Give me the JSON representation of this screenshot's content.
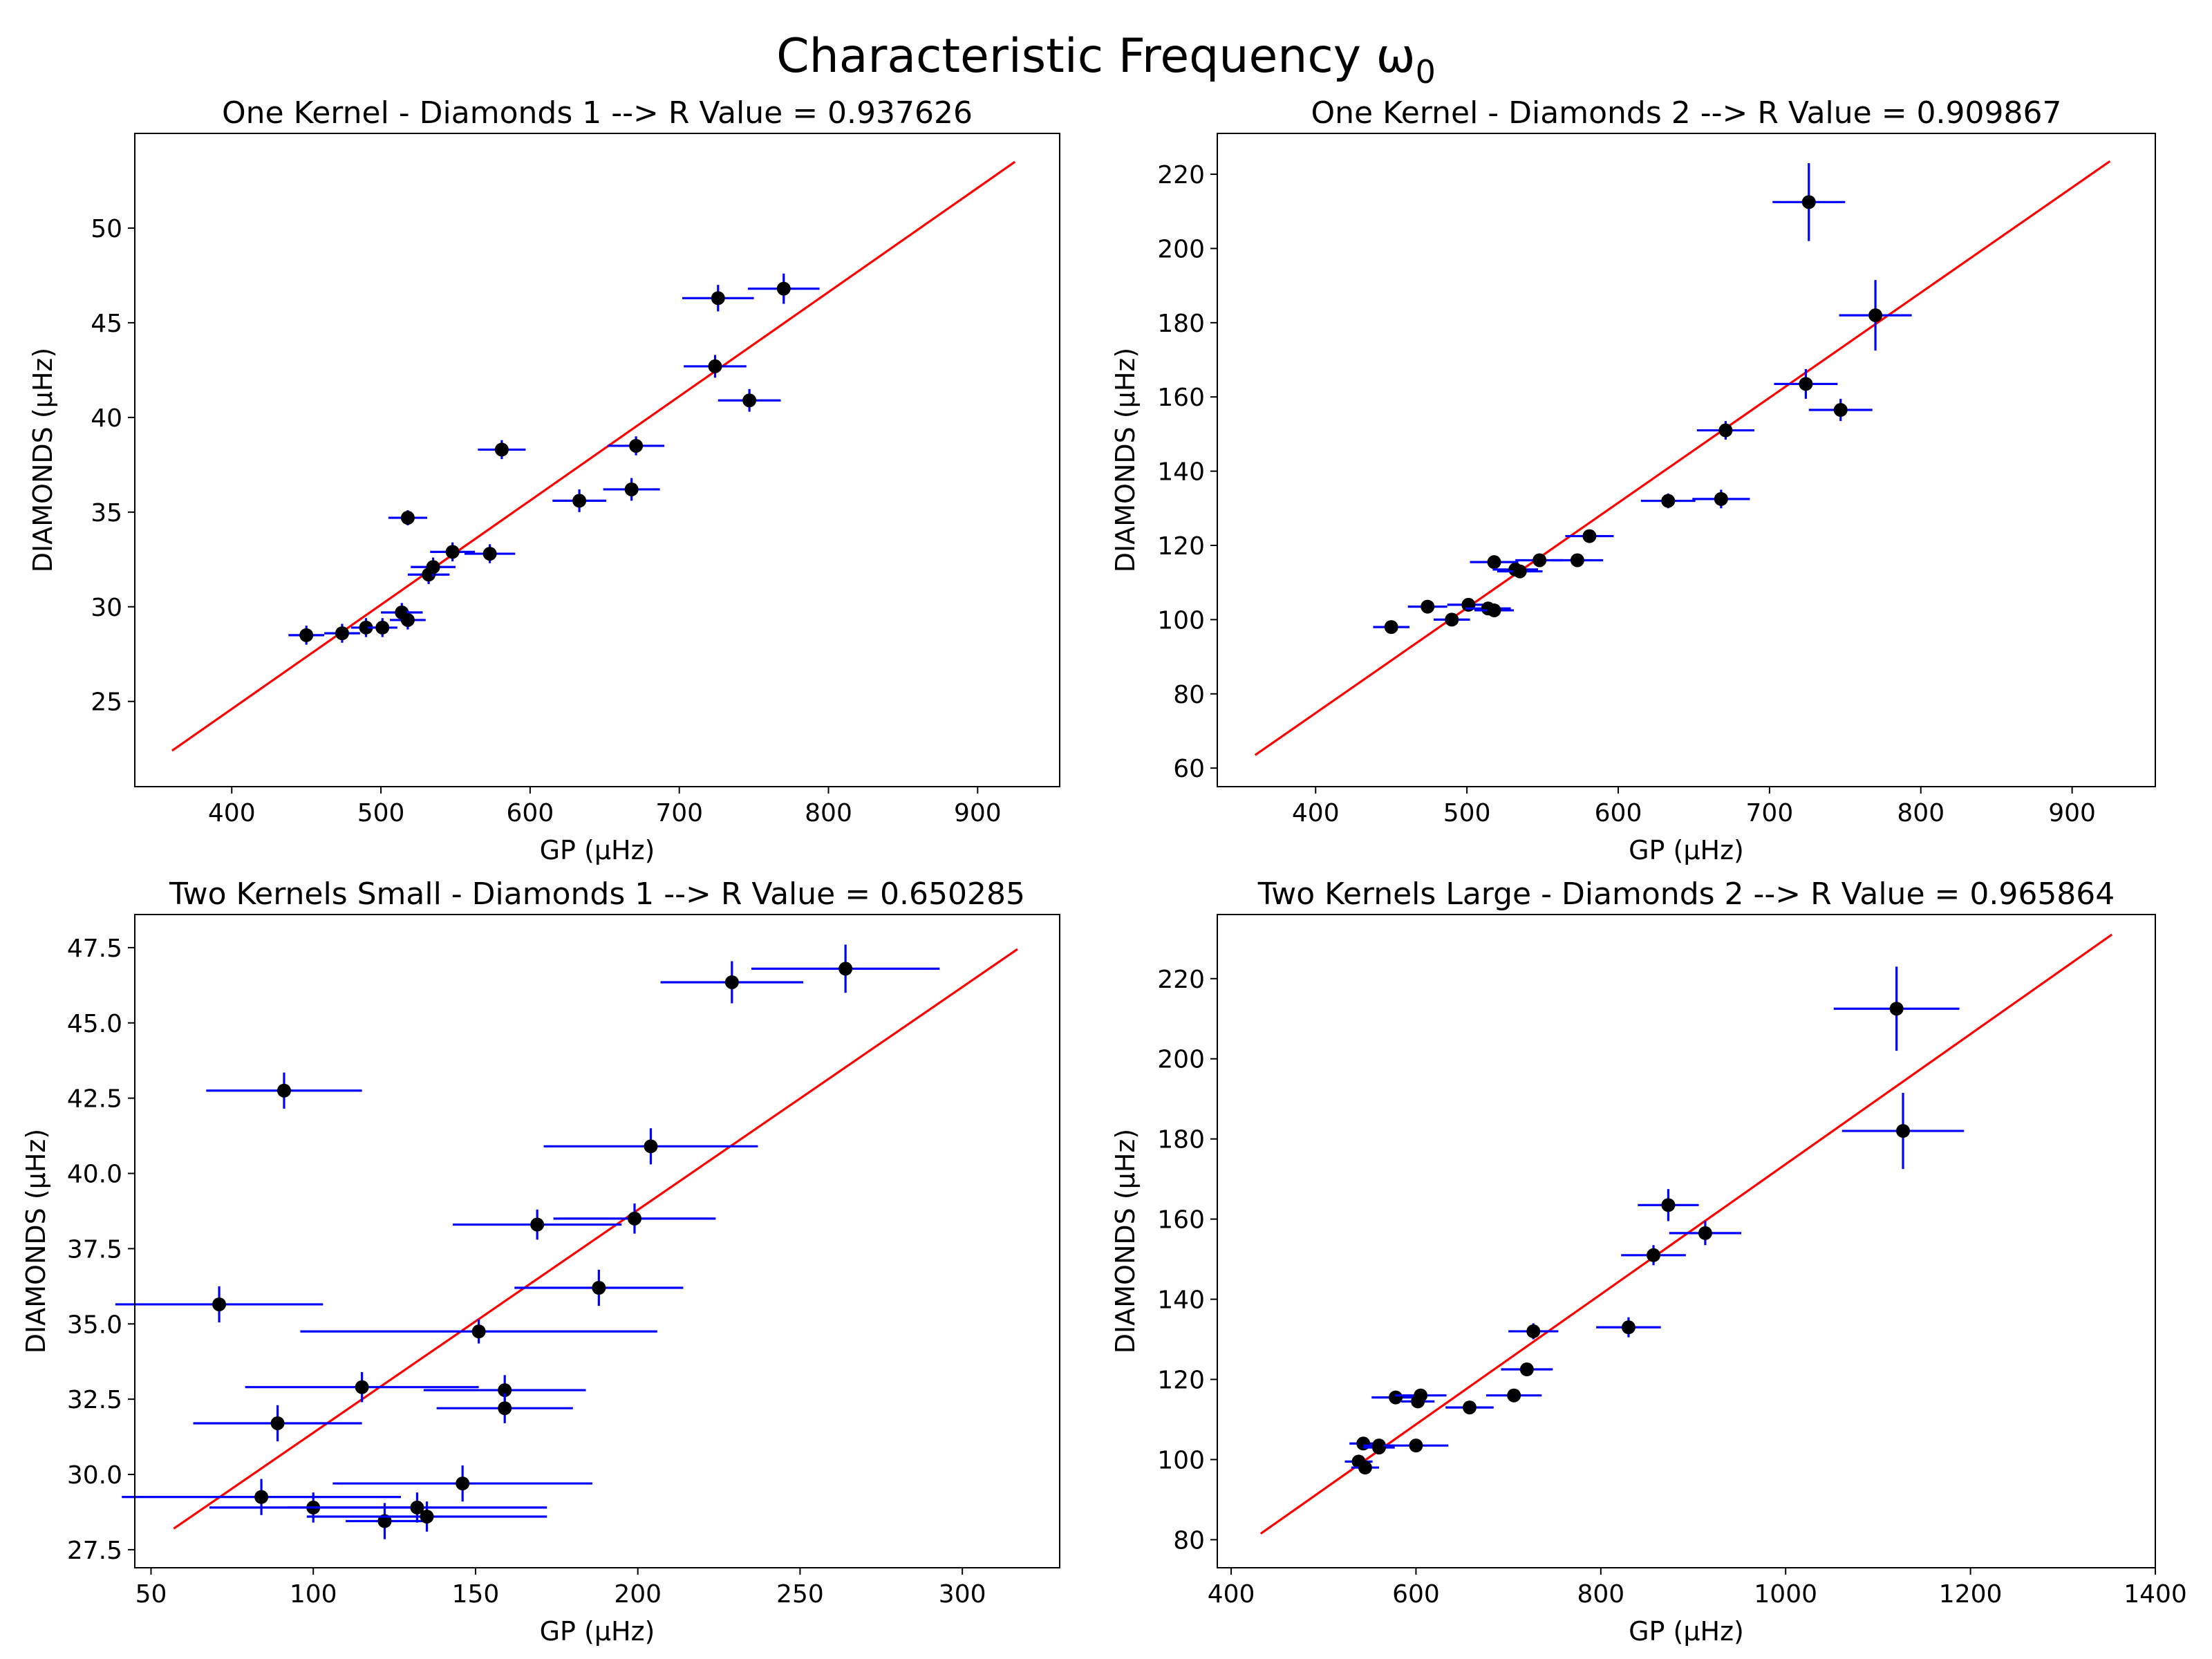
{
  "figure_title": "Characteristic Frequency ω",
  "figure_title_sub": "0",
  "colors": {
    "errorbar": "#0000ff",
    "point": "#000000",
    "fit_line": "#ff0000",
    "axes": "#000000"
  },
  "chart_data": [
    {
      "type": "scatter",
      "title": "One Kernel - Diamonds 1 --> R Value = 0.937626",
      "xlabel": "GP (μHz)",
      "ylabel": "DIAMONDS (μHz)",
      "xlim": [
        335,
        955
      ],
      "ylim": [
        20.5,
        55
      ],
      "xticks": [
        400,
        500,
        600,
        700,
        800,
        900
      ],
      "yticks": [
        25,
        30,
        35,
        40,
        45,
        50
      ],
      "points": [
        {
          "x": 450,
          "y": 28.5,
          "xerr": 12,
          "yerr": 0.5
        },
        {
          "x": 474,
          "y": 28.6,
          "xerr": 12,
          "yerr": 0.5
        },
        {
          "x": 490,
          "y": 28.9,
          "xerr": 10,
          "yerr": 0.5
        },
        {
          "x": 501,
          "y": 28.9,
          "xerr": 10,
          "yerr": 0.5
        },
        {
          "x": 514,
          "y": 29.7,
          "xerr": 14,
          "yerr": 0.5
        },
        {
          "x": 518,
          "y": 29.3,
          "xerr": 12,
          "yerr": 0.5
        },
        {
          "x": 518,
          "y": 34.7,
          "xerr": 13,
          "yerr": 0.4
        },
        {
          "x": 532,
          "y": 31.7,
          "xerr": 14,
          "yerr": 0.5
        },
        {
          "x": 535,
          "y": 32.1,
          "xerr": 15,
          "yerr": 0.5
        },
        {
          "x": 548,
          "y": 32.9,
          "xerr": 15,
          "yerr": 0.5
        },
        {
          "x": 573,
          "y": 32.8,
          "xerr": 17,
          "yerr": 0.5
        },
        {
          "x": 581,
          "y": 38.3,
          "xerr": 16,
          "yerr": 0.5
        },
        {
          "x": 633,
          "y": 35.6,
          "xerr": 18,
          "yerr": 0.6
        },
        {
          "x": 668,
          "y": 36.2,
          "xerr": 19,
          "yerr": 0.6
        },
        {
          "x": 671,
          "y": 38.5,
          "xerr": 19,
          "yerr": 0.5
        },
        {
          "x": 724,
          "y": 42.7,
          "xerr": 21,
          "yerr": 0.6
        },
        {
          "x": 726,
          "y": 46.3,
          "xerr": 24,
          "yerr": 0.7
        },
        {
          "x": 747,
          "y": 40.9,
          "xerr": 21,
          "yerr": 0.6
        },
        {
          "x": 770,
          "y": 46.8,
          "xerr": 24,
          "yerr": 0.8
        }
      ],
      "fit_line": {
        "x": [
          360,
          925
        ],
        "y": [
          22.4,
          53.5
        ]
      }
    },
    {
      "type": "scatter",
      "title": "One Kernel - Diamonds 2 --> R Value = 0.909867",
      "xlabel": "GP (μHz)",
      "ylabel": "DIAMONDS (μHz)",
      "xlim": [
        335,
        955
      ],
      "ylim": [
        55,
        231
      ],
      "xticks": [
        400,
        500,
        600,
        700,
        800,
        900
      ],
      "yticks": [
        60,
        80,
        100,
        120,
        140,
        160,
        180,
        200,
        220
      ],
      "points": [
        {
          "x": 450,
          "y": 98,
          "xerr": 12,
          "yerr": 1.5
        },
        {
          "x": 474,
          "y": 103.5,
          "xerr": 13,
          "yerr": 1.5
        },
        {
          "x": 490,
          "y": 100,
          "xerr": 12,
          "yerr": 1.5
        },
        {
          "x": 501,
          "y": 104,
          "xerr": 14,
          "yerr": 1.5
        },
        {
          "x": 514,
          "y": 103,
          "xerr": 15,
          "yerr": 1.5
        },
        {
          "x": 518,
          "y": 102.5,
          "xerr": 13,
          "yerr": 1.5
        },
        {
          "x": 518,
          "y": 115.5,
          "xerr": 16,
          "yerr": 1.5
        },
        {
          "x": 532,
          "y": 113.5,
          "xerr": 15,
          "yerr": 1.5
        },
        {
          "x": 535,
          "y": 113,
          "xerr": 15,
          "yerr": 1.5
        },
        {
          "x": 548,
          "y": 116,
          "xerr": 16,
          "yerr": 1.5
        },
        {
          "x": 573,
          "y": 116,
          "xerr": 17,
          "yerr": 1.5
        },
        {
          "x": 581,
          "y": 122.5,
          "xerr": 16,
          "yerr": 1.5
        },
        {
          "x": 633,
          "y": 132,
          "xerr": 18,
          "yerr": 2
        },
        {
          "x": 668,
          "y": 132.5,
          "xerr": 19,
          "yerr": 2.5
        },
        {
          "x": 671,
          "y": 151,
          "xerr": 19,
          "yerr": 2.5
        },
        {
          "x": 724,
          "y": 163.5,
          "xerr": 21,
          "yerr": 4
        },
        {
          "x": 726,
          "y": 212.5,
          "xerr": 24,
          "yerr": 10.5
        },
        {
          "x": 747,
          "y": 156.5,
          "xerr": 21,
          "yerr": 3
        },
        {
          "x": 770,
          "y": 182,
          "xerr": 24,
          "yerr": 9.5
        }
      ],
      "fit_line": {
        "x": [
          360,
          925
        ],
        "y": [
          63.5,
          223.5
        ]
      }
    },
    {
      "type": "scatter",
      "title": "Two Kernels Small - Diamonds 1 --> R Value = 0.650285",
      "xlabel": "GP (μHz)",
      "ylabel": "DIAMONDS (μHz)",
      "xlim": [
        45,
        330
      ],
      "ylim": [
        26.9,
        48.6
      ],
      "xticks": [
        50,
        100,
        150,
        200,
        250,
        300
      ],
      "yticks": [
        27.5,
        30.0,
        32.5,
        35.0,
        37.5,
        40.0,
        42.5,
        45.0,
        47.5
      ],
      "ytick_labels": [
        "27.5",
        "30.0",
        "32.5",
        "35.0",
        "37.5",
        "40.0",
        "42.5",
        "45.0",
        "47.5"
      ],
      "points": [
        {
          "x": 71,
          "y": 35.65,
          "xerr": 32,
          "yerr": 0.6
        },
        {
          "x": 84,
          "y": 29.25,
          "xerr": 43,
          "yerr": 0.6
        },
        {
          "x": 89,
          "y": 31.7,
          "xerr": 26,
          "yerr": 0.6
        },
        {
          "x": 91,
          "y": 42.75,
          "xerr": 24,
          "yerr": 0.6
        },
        {
          "x": 100,
          "y": 28.9,
          "xerr": 32,
          "yerr": 0.5
        },
        {
          "x": 115,
          "y": 32.9,
          "xerr": 36,
          "yerr": 0.5
        },
        {
          "x": 122,
          "y": 28.45,
          "xerr": 12,
          "yerr": 0.6
        },
        {
          "x": 132,
          "y": 28.9,
          "xerr": 40,
          "yerr": 0.5
        },
        {
          "x": 135,
          "y": 28.6,
          "xerr": 37,
          "yerr": 0.5
        },
        {
          "x": 146,
          "y": 29.7,
          "xerr": 40,
          "yerr": 0.6
        },
        {
          "x": 151,
          "y": 34.75,
          "xerr": 55,
          "yerr": 0.4
        },
        {
          "x": 159,
          "y": 32.8,
          "xerr": 25,
          "yerr": 0.5
        },
        {
          "x": 159,
          "y": 32.2,
          "xerr": 21,
          "yerr": 0.5
        },
        {
          "x": 169,
          "y": 38.3,
          "xerr": 26,
          "yerr": 0.5
        },
        {
          "x": 188,
          "y": 36.2,
          "xerr": 26,
          "yerr": 0.6
        },
        {
          "x": 199,
          "y": 38.5,
          "xerr": 25,
          "yerr": 0.5
        },
        {
          "x": 204,
          "y": 40.9,
          "xerr": 33,
          "yerr": 0.6
        },
        {
          "x": 229,
          "y": 46.35,
          "xerr": 22,
          "yerr": 0.7
        },
        {
          "x": 264,
          "y": 46.8,
          "xerr": 29,
          "yerr": 0.8
        }
      ],
      "fit_line": {
        "x": [
          57,
          317
        ],
        "y": [
          28.2,
          47.45
        ]
      }
    },
    {
      "type": "scatter",
      "title": "Two Kernels Large - Diamonds 2 --> R Value = 0.965864",
      "xlabel": "GP (μHz)",
      "ylabel": "DIAMONDS (μHz)",
      "xlim": [
        385,
        1400
      ],
      "ylim": [
        73,
        236
      ],
      "xticks": [
        400,
        600,
        800,
        1000,
        1200,
        1400
      ],
      "yticks": [
        80,
        100,
        120,
        140,
        160,
        180,
        200,
        220
      ],
      "points": [
        {
          "x": 538,
          "y": 99.5,
          "xerr": 15,
          "yerr": 1.5
        },
        {
          "x": 543,
          "y": 104,
          "xerr": 15,
          "yerr": 1.5
        },
        {
          "x": 545,
          "y": 98,
          "xerr": 15,
          "yerr": 1.5
        },
        {
          "x": 560,
          "y": 103.5,
          "xerr": 17,
          "yerr": 1.5
        },
        {
          "x": 560,
          "y": 103,
          "xerr": 17,
          "yerr": 1.5
        },
        {
          "x": 578,
          "y": 115.5,
          "xerr": 26,
          "yerr": 1.5
        },
        {
          "x": 600,
          "y": 103.5,
          "xerr": 35,
          "yerr": 1.5
        },
        {
          "x": 602,
          "y": 114.5,
          "xerr": 18,
          "yerr": 1.5
        },
        {
          "x": 605,
          "y": 116,
          "xerr": 28,
          "yerr": 1.5
        },
        {
          "x": 658,
          "y": 113,
          "xerr": 26,
          "yerr": 1.5
        },
        {
          "x": 706,
          "y": 116,
          "xerr": 30,
          "yerr": 1.5
        },
        {
          "x": 720,
          "y": 122.5,
          "xerr": 28,
          "yerr": 1.5
        },
        {
          "x": 727,
          "y": 132,
          "xerr": 27,
          "yerr": 2
        },
        {
          "x": 830,
          "y": 133,
          "xerr": 35,
          "yerr": 2.5
        },
        {
          "x": 857,
          "y": 151,
          "xerr": 35,
          "yerr": 2.5
        },
        {
          "x": 873,
          "y": 163.5,
          "xerr": 33,
          "yerr": 4
        },
        {
          "x": 913,
          "y": 156.5,
          "xerr": 39,
          "yerr": 3
        },
        {
          "x": 1120,
          "y": 212.5,
          "xerr": 68,
          "yerr": 10.5
        },
        {
          "x": 1127,
          "y": 182,
          "xerr": 66,
          "yerr": 9.5
        }
      ],
      "fit_line": {
        "x": [
          432,
          1353
        ],
        "y": [
          81.5,
          231
        ]
      }
    }
  ]
}
